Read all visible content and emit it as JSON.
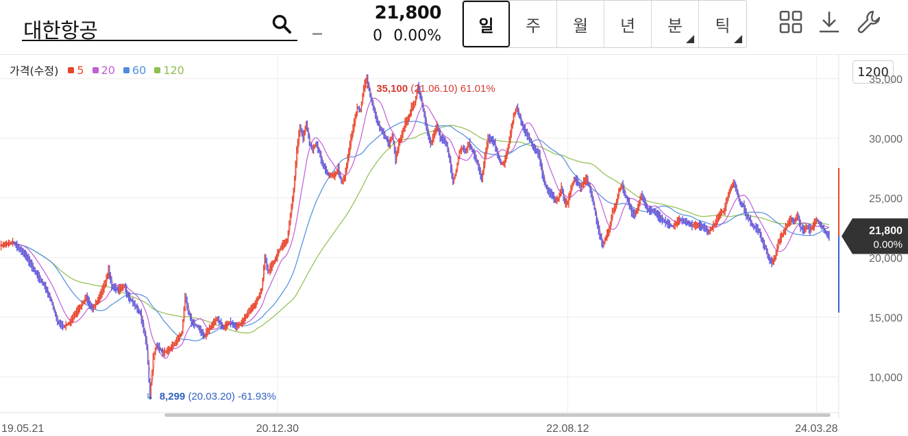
{
  "header": {
    "stock_name": "대한항공",
    "price": "21,800",
    "change": "0",
    "change_pct": "0.00%",
    "periods": [
      {
        "label": "일",
        "active": true,
        "has_corner": false
      },
      {
        "label": "주",
        "active": false,
        "has_corner": false
      },
      {
        "label": "월",
        "active": false,
        "has_corner": false
      },
      {
        "label": "년",
        "active": false,
        "has_corner": false
      },
      {
        "label": "분",
        "active": false,
        "has_corner": true
      },
      {
        "label": "틱",
        "active": false,
        "has_corner": true
      }
    ],
    "icons": [
      "grid-icon",
      "download-icon",
      "wrench-icon"
    ]
  },
  "legend": {
    "label": "가격(수정)",
    "items": [
      {
        "name": "5",
        "color": "#e8442c"
      },
      {
        "name": "20",
        "color": "#c25ed6"
      },
      {
        "name": "60",
        "color": "#4f8edc"
      },
      {
        "name": "120",
        "color": "#8fbf4f"
      }
    ]
  },
  "scale_badge": "1200",
  "chart_data": {
    "type": "line",
    "ylim": [
      7000,
      37000
    ],
    "y_ticks": [
      10000,
      15000,
      20000,
      25000,
      30000,
      35000
    ],
    "y_tick_labels": [
      "10,000",
      "15,000",
      "20,000",
      "25,000",
      "30,000",
      "35,000"
    ],
    "x_tick_labels": [
      "19.05.21",
      "20.12.30",
      "22.08.12",
      "24.03.28"
    ],
    "up_color": "#e8442c",
    "down_color": "#5a5ae6",
    "price_path": [
      [
        0,
        21000
      ],
      [
        4,
        21300
      ],
      [
        8,
        20200
      ],
      [
        11,
        18800
      ],
      [
        14,
        17600
      ],
      [
        16,
        16400
      ],
      [
        18,
        14600
      ],
      [
        20,
        14200
      ],
      [
        22,
        14600
      ],
      [
        23,
        15100
      ],
      [
        25,
        15800
      ],
      [
        27,
        16700
      ],
      [
        28,
        16100
      ],
      [
        29,
        15700
      ],
      [
        31,
        16600
      ],
      [
        33,
        17900
      ],
      [
        34,
        19000
      ],
      [
        35,
        17600
      ],
      [
        37,
        17300
      ],
      [
        39,
        17600
      ],
      [
        40,
        16800
      ],
      [
        42,
        16100
      ],
      [
        44,
        15300
      ],
      [
        45,
        14000
      ],
      [
        46,
        12600
      ],
      [
        47,
        8299
      ],
      [
        48,
        11600
      ],
      [
        49,
        12700
      ],
      [
        50,
        12400
      ],
      [
        51,
        12000
      ],
      [
        53,
        12300
      ],
      [
        55,
        12900
      ],
      [
        57,
        13700
      ],
      [
        58,
        16800
      ],
      [
        59,
        15500
      ],
      [
        60,
        14600
      ],
      [
        62,
        14200
      ],
      [
        64,
        13400
      ],
      [
        66,
        14200
      ],
      [
        68,
        14900
      ],
      [
        70,
        14100
      ],
      [
        72,
        14600
      ],
      [
        74,
        14200
      ],
      [
        76,
        14600
      ],
      [
        78,
        15500
      ],
      [
        80,
        16100
      ],
      [
        82,
        17300
      ],
      [
        83,
        20100
      ],
      [
        84,
        18800
      ],
      [
        86,
        19700
      ],
      [
        88,
        20900
      ],
      [
        90,
        21400
      ],
      [
        91,
        23600
      ],
      [
        92,
        25600
      ],
      [
        93,
        29000
      ],
      [
        94,
        31000
      ],
      [
        95,
        30000
      ],
      [
        96,
        31300
      ],
      [
        97,
        29600
      ],
      [
        98,
        29000
      ],
      [
        99,
        29600
      ],
      [
        100,
        28900
      ],
      [
        101,
        27900
      ],
      [
        103,
        26900
      ],
      [
        105,
        26900
      ],
      [
        106,
        27500
      ],
      [
        107,
        26300
      ],
      [
        108,
        26700
      ],
      [
        110,
        30000
      ],
      [
        112,
        32600
      ],
      [
        113,
        32300
      ],
      [
        114,
        34300
      ],
      [
        115,
        35100
      ],
      [
        116,
        33600
      ],
      [
        117,
        32600
      ],
      [
        118,
        31600
      ],
      [
        119,
        30900
      ],
      [
        120,
        30500
      ],
      [
        121,
        30000
      ],
      [
        122,
        29500
      ],
      [
        123,
        30300
      ],
      [
        124,
        28200
      ],
      [
        125,
        29600
      ],
      [
        126,
        30300
      ],
      [
        127,
        31300
      ],
      [
        128,
        31600
      ],
      [
        129,
        32600
      ],
      [
        130,
        32900
      ],
      [
        131,
        34400
      ],
      [
        132,
        33300
      ],
      [
        133,
        31900
      ],
      [
        134,
        30500
      ],
      [
        135,
        29500
      ],
      [
        136,
        30300
      ],
      [
        137,
        31100
      ],
      [
        138,
        30000
      ],
      [
        139,
        29900
      ],
      [
        140,
        29500
      ],
      [
        141,
        28100
      ],
      [
        142,
        26300
      ],
      [
        143,
        27300
      ],
      [
        144,
        28900
      ],
      [
        145,
        29200
      ],
      [
        146,
        28900
      ],
      [
        147,
        29600
      ],
      [
        148,
        29000
      ],
      [
        149,
        28400
      ],
      [
        150,
        27600
      ],
      [
        151,
        26500
      ],
      [
        152,
        28500
      ],
      [
        153,
        30000
      ],
      [
        154,
        29900
      ],
      [
        155,
        29600
      ],
      [
        156,
        28600
      ],
      [
        157,
        27900
      ],
      [
        158,
        27900
      ],
      [
        159,
        28900
      ],
      [
        160,
        30400
      ],
      [
        161,
        31900
      ],
      [
        162,
        32600
      ],
      [
        163,
        31700
      ],
      [
        164,
        30900
      ],
      [
        165,
        30400
      ],
      [
        166,
        30000
      ],
      [
        167,
        29300
      ],
      [
        168,
        29000
      ],
      [
        169,
        28600
      ],
      [
        170,
        27000
      ],
      [
        171,
        26000
      ],
      [
        172,
        25500
      ],
      [
        173,
        25300
      ],
      [
        174,
        24800
      ],
      [
        175,
        24900
      ],
      [
        176,
        25900
      ],
      [
        177,
        24600
      ],
      [
        178,
        24600
      ],
      [
        179,
        25800
      ],
      [
        180,
        26600
      ],
      [
        181,
        26400
      ],
      [
        182,
        25800
      ],
      [
        183,
        26400
      ],
      [
        184,
        26600
      ],
      [
        185,
        25700
      ],
      [
        186,
        24600
      ],
      [
        187,
        23100
      ],
      [
        188,
        21900
      ],
      [
        189,
        21000
      ],
      [
        190,
        21800
      ],
      [
        191,
        22300
      ],
      [
        192,
        23900
      ],
      [
        193,
        24300
      ],
      [
        194,
        25600
      ],
      [
        195,
        26100
      ],
      [
        196,
        25200
      ],
      [
        197,
        24700
      ],
      [
        198,
        23800
      ],
      [
        199,
        23600
      ],
      [
        200,
        24200
      ],
      [
        201,
        25300
      ],
      [
        202,
        24700
      ],
      [
        203,
        24000
      ],
      [
        205,
        23900
      ],
      [
        207,
        23300
      ],
      [
        209,
        22900
      ],
      [
        211,
        22600
      ],
      [
        213,
        23200
      ],
      [
        215,
        23000
      ],
      [
        217,
        22700
      ],
      [
        219,
        22700
      ],
      [
        221,
        22500
      ],
      [
        222,
        22100
      ],
      [
        224,
        22800
      ],
      [
        226,
        23800
      ],
      [
        227,
        23900
      ],
      [
        228,
        25000
      ],
      [
        229,
        25800
      ],
      [
        230,
        26300
      ],
      [
        231,
        25600
      ],
      [
        232,
        24500
      ],
      [
        233,
        24400
      ],
      [
        234,
        23500
      ],
      [
        235,
        23200
      ],
      [
        236,
        22600
      ],
      [
        237,
        22500
      ],
      [
        238,
        22200
      ],
      [
        239,
        21300
      ],
      [
        240,
        20800
      ],
      [
        241,
        19900
      ],
      [
        242,
        19600
      ],
      [
        243,
        20000
      ],
      [
        244,
        21300
      ],
      [
        245,
        21800
      ],
      [
        246,
        22300
      ],
      [
        247,
        22900
      ],
      [
        248,
        23200
      ],
      [
        249,
        23000
      ],
      [
        250,
        23600
      ],
      [
        251,
        22500
      ],
      [
        252,
        22300
      ],
      [
        253,
        22600
      ],
      [
        254,
        22300
      ],
      [
        255,
        22700
      ],
      [
        256,
        23200
      ],
      [
        257,
        22800
      ],
      [
        258,
        22500
      ],
      [
        259,
        22000
      ],
      [
        260,
        21800
      ]
    ],
    "x_tick_positions": [
      0,
      87,
      178,
      256
    ],
    "ma_periods": [
      5,
      20,
      60,
      120
    ],
    "annotations": [
      {
        "type": "high",
        "value": "35,100",
        "date": "(21.06.10)",
        "pct": "61.01%",
        "at_index": 115,
        "at_value": 35100
      },
      {
        "type": "low",
        "value": "8,299",
        "date": "(20.03.20)",
        "pct": "-61.93%",
        "at_index": 47,
        "at_value": 8299
      }
    ],
    "current_price": {
      "value": 21800,
      "label": "21,800",
      "pct": "0.00%"
    }
  }
}
